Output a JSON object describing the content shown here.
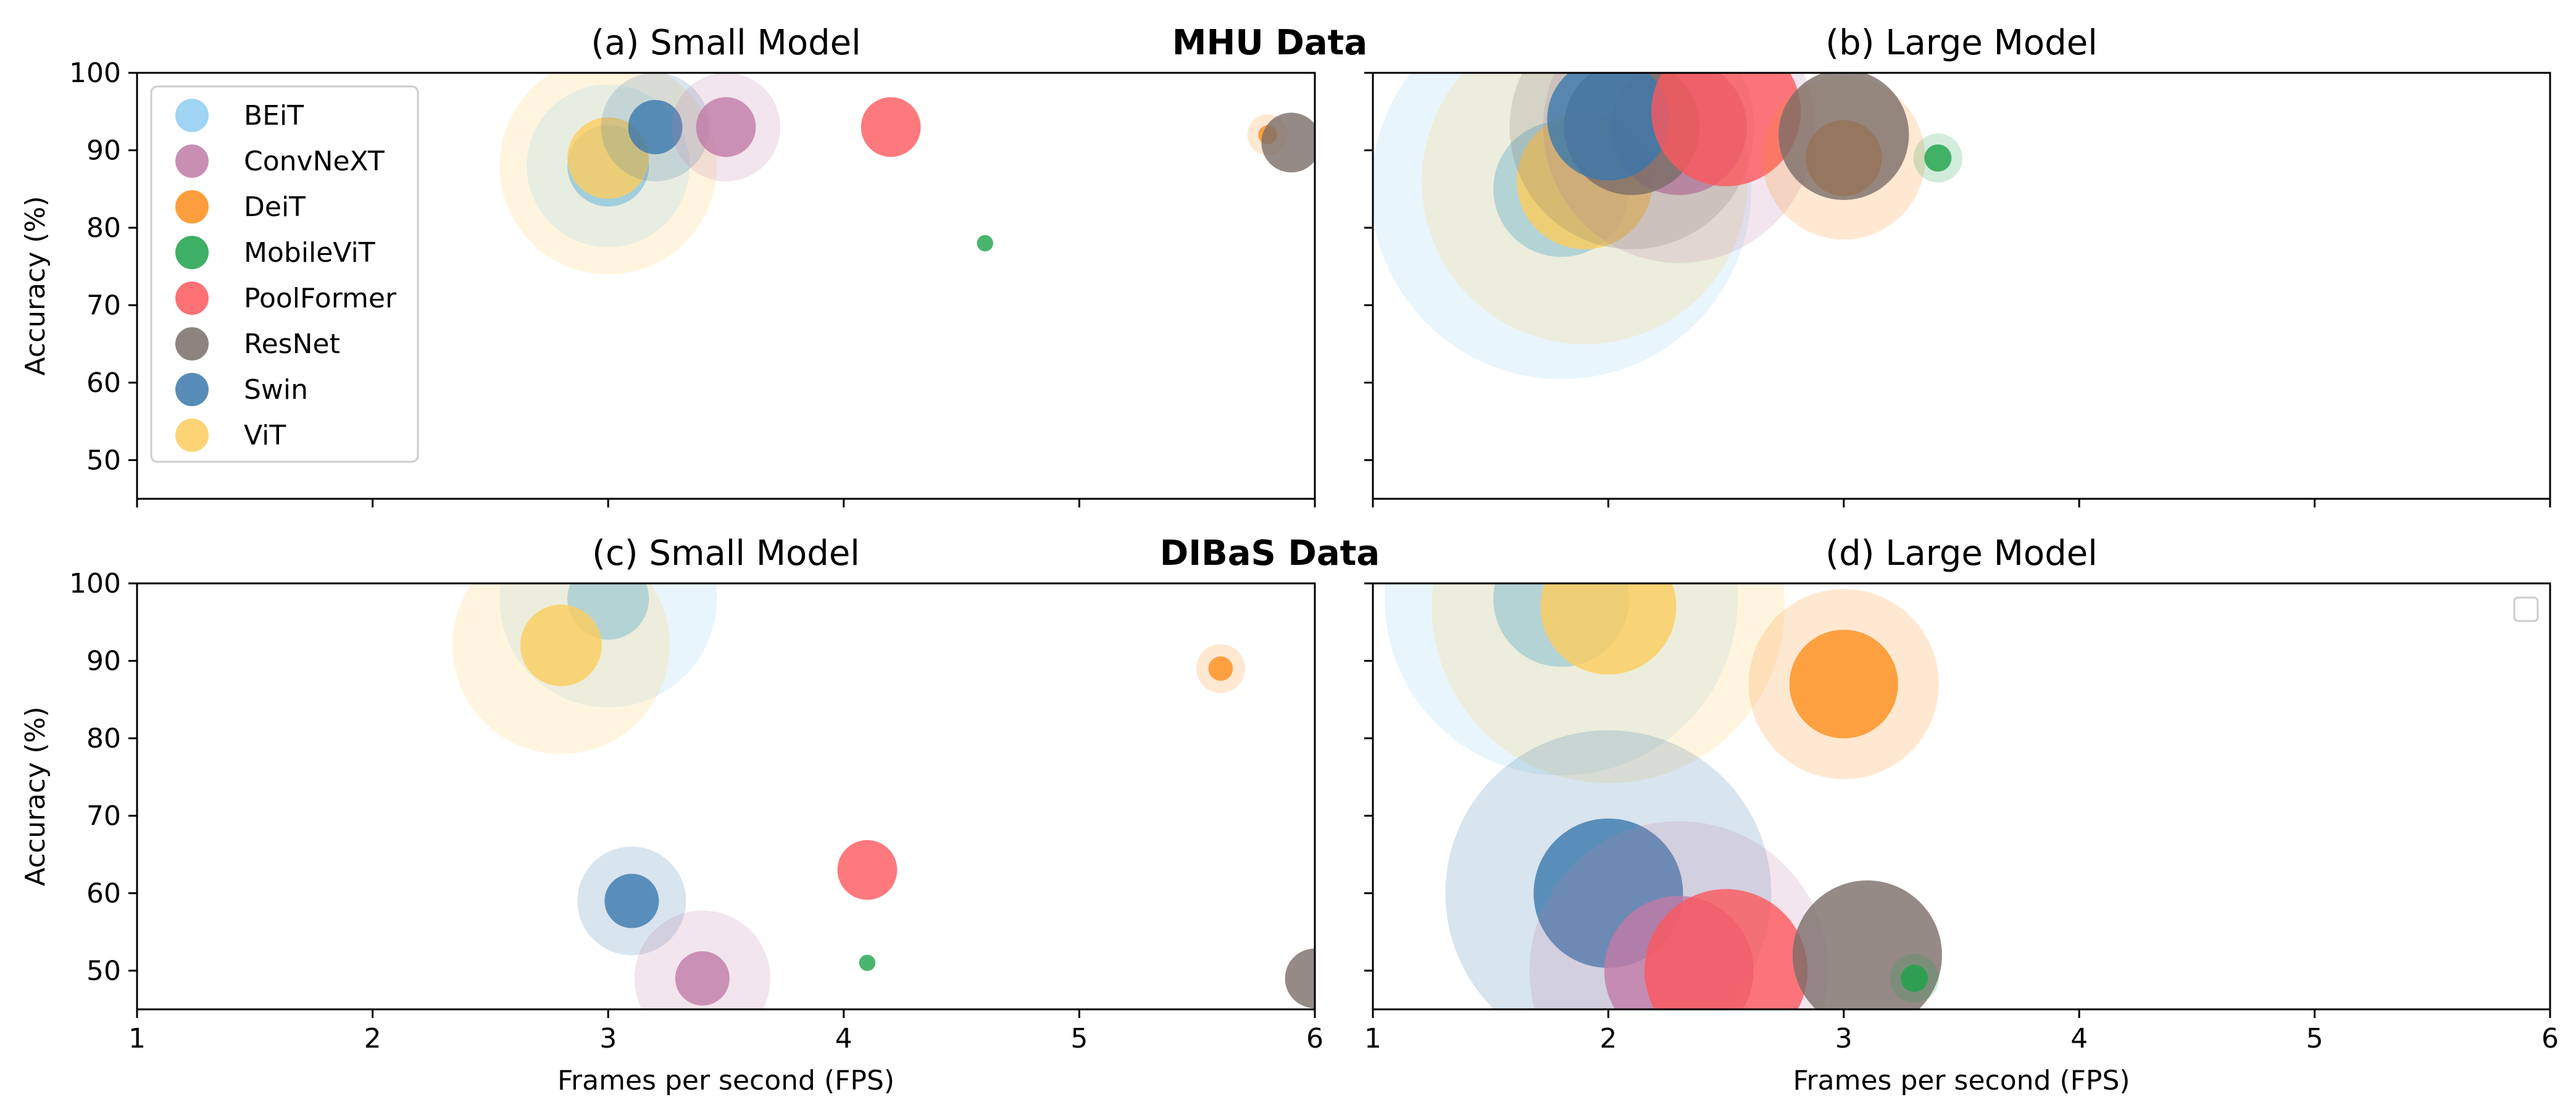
{
  "row_titles": [
    "MHU Data",
    "DIBaS Data"
  ],
  "legend_entries": [
    {
      "name": "BEiT",
      "color": "#8ecdf0"
    },
    {
      "name": "ConvNeXT",
      "color": "#c07ba6"
    },
    {
      "name": "DeiT",
      "color": "#fd8d1c"
    },
    {
      "name": "MobileViT",
      "color": "#1ba24a"
    },
    {
      "name": "PoolFormer",
      "color": "#fd575c"
    },
    {
      "name": "ResNet",
      "color": "#7a6d68"
    },
    {
      "name": "Swin",
      "color": "#3a78ac"
    },
    {
      "name": "ViT",
      "color": "#fdcd5d"
    }
  ],
  "chart_data": [
    {
      "type": "scatter",
      "title": "(a) Small Model",
      "xlabel": "",
      "ylabel": "Accuracy (%)",
      "xlim": [
        1,
        6
      ],
      "ylim": [
        45,
        100
      ],
      "xticks": [
        "1",
        "2",
        "3",
        "4",
        "5",
        "6"
      ],
      "yticks": [
        "50",
        "60",
        "70",
        "80",
        "90",
        "100"
      ],
      "points": [
        {
          "model": "ViT",
          "fps": 3.0,
          "accuracy": 88,
          "size": 3,
          "halo": 8
        },
        {
          "model": "BEiT",
          "fps": 3.0,
          "accuracy": 88,
          "size": 3,
          "halo": 6
        },
        {
          "model": "ViT",
          "fps": 3.0,
          "accuracy": 89,
          "size": 3,
          "halo": 0
        },
        {
          "model": "Swin",
          "fps": 3.2,
          "accuracy": 93,
          "size": 2,
          "halo": 4
        },
        {
          "model": "ConvNeXT",
          "fps": 3.5,
          "accuracy": 93,
          "size": 2.2,
          "halo": 4
        },
        {
          "model": "PoolFormer",
          "fps": 4.2,
          "accuracy": 93,
          "size": 2.2,
          "halo": 0
        },
        {
          "model": "MobileViT",
          "fps": 4.6,
          "accuracy": 78,
          "size": 0.6,
          "halo": 0
        },
        {
          "model": "DeiT",
          "fps": 5.8,
          "accuracy": 92,
          "size": 0.7,
          "halo": 1.5
        },
        {
          "model": "ResNet",
          "fps": 5.9,
          "accuracy": 91,
          "size": 2.2,
          "halo": 0
        }
      ]
    },
    {
      "type": "scatter",
      "title": "(b) Large Model",
      "xlabel": "",
      "ylabel": "",
      "xlim": [
        1,
        6
      ],
      "ylim": [
        45,
        100
      ],
      "xticks": [
        "1",
        "2",
        "3",
        "4",
        "5",
        "6"
      ],
      "yticks": [],
      "points": [
        {
          "model": "BEiT",
          "fps": 1.8,
          "accuracy": 85,
          "size": 5,
          "halo": 14
        },
        {
          "model": "ViT",
          "fps": 1.9,
          "accuracy": 86,
          "size": 5,
          "halo": 12
        },
        {
          "model": "ConvNeXT",
          "fps": 2.3,
          "accuracy": 93,
          "size": 5,
          "halo": 10
        },
        {
          "model": "ResNet",
          "fps": 2.1,
          "accuracy": 93,
          "size": 5,
          "halo": 9
        },
        {
          "model": "Swin",
          "fps": 2.0,
          "accuracy": 94,
          "size": 4.5,
          "halo": 0
        },
        {
          "model": "PoolFormer",
          "fps": 2.5,
          "accuracy": 95,
          "size": 5.5,
          "halo": 0
        },
        {
          "model": "DeiT",
          "fps": 3.0,
          "accuracy": 89,
          "size": 2.8,
          "halo": 6
        },
        {
          "model": "ResNet",
          "fps": 3.0,
          "accuracy": 92,
          "size": 4.8,
          "halo": 0
        },
        {
          "model": "MobileViT",
          "fps": 3.4,
          "accuracy": 89,
          "size": 1,
          "halo": 1.8
        }
      ]
    },
    {
      "type": "scatter",
      "title": "(c) Small Model",
      "xlabel": "Frames per second (FPS)",
      "ylabel": "Accuracy (%)",
      "xlim": [
        1,
        6
      ],
      "ylim": [
        45,
        100
      ],
      "xticks": [
        "1",
        "2",
        "3",
        "4",
        "5",
        "6"
      ],
      "yticks": [
        "50",
        "60",
        "70",
        "80",
        "90",
        "100"
      ],
      "points": [
        {
          "model": "BEiT",
          "fps": 3.0,
          "accuracy": 98,
          "size": 3,
          "halo": 8
        },
        {
          "model": "ViT",
          "fps": 2.8,
          "accuracy": 92,
          "size": 3,
          "halo": 8
        },
        {
          "model": "DeiT",
          "fps": 5.6,
          "accuracy": 89,
          "size": 0.9,
          "halo": 1.8
        },
        {
          "model": "PoolFormer",
          "fps": 4.1,
          "accuracy": 63,
          "size": 2.2,
          "halo": 0
        },
        {
          "model": "Swin",
          "fps": 3.1,
          "accuracy": 59,
          "size": 2,
          "halo": 4
        },
        {
          "model": "MobileViT",
          "fps": 4.1,
          "accuracy": 51,
          "size": 0.6,
          "halo": 0
        },
        {
          "model": "ConvNeXT",
          "fps": 3.4,
          "accuracy": 49,
          "size": 2,
          "halo": 5
        },
        {
          "model": "ResNet",
          "fps": 6.0,
          "accuracy": 49,
          "size": 2.2,
          "halo": 0
        }
      ]
    },
    {
      "type": "scatter",
      "title": "(d) Large Model",
      "xlabel": "Frames per second (FPS)",
      "ylabel": "",
      "xlim": [
        1,
        6
      ],
      "ylim": [
        45,
        100
      ],
      "xticks": [
        "1",
        "2",
        "3",
        "4",
        "5",
        "6"
      ],
      "yticks": [],
      "points": [
        {
          "model": "BEiT",
          "fps": 1.8,
          "accuracy": 98,
          "size": 5,
          "halo": 13
        },
        {
          "model": "ViT",
          "fps": 2.0,
          "accuracy": 97,
          "size": 5,
          "halo": 13
        },
        {
          "model": "DeiT",
          "fps": 3.0,
          "accuracy": 87,
          "size": 4,
          "halo": 7
        },
        {
          "model": "Swin",
          "fps": 2.0,
          "accuracy": 60,
          "size": 5.5,
          "halo": 12
        },
        {
          "model": "ConvNeXT",
          "fps": 2.3,
          "accuracy": 50,
          "size": 5.5,
          "halo": 11
        },
        {
          "model": "PoolFormer",
          "fps": 2.5,
          "accuracy": 50,
          "size": 6,
          "halo": 0
        },
        {
          "model": "ResNet",
          "fps": 3.1,
          "accuracy": 52,
          "size": 5.5,
          "halo": 0
        },
        {
          "model": "MobileViT",
          "fps": 3.3,
          "accuracy": 49,
          "size": 1,
          "halo": 1.8
        }
      ]
    }
  ]
}
